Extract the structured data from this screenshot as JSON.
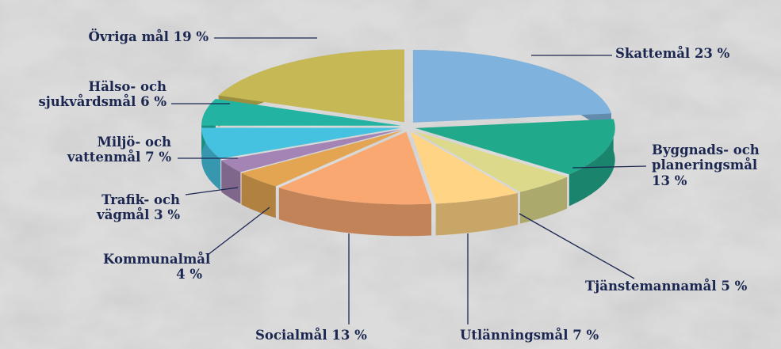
{
  "chart_data": {
    "type": "pie",
    "categories": [
      "Skattemål",
      "Byggnads- och planeringsmål",
      "Tjänstemannamål",
      "Utlänningsmål",
      "Socialmål",
      "Kommunalmål",
      "Trafik- och vägmål",
      "Miljö- och vattenmål",
      "Hälso- och sjukvårdsmål",
      "Övriga mål"
    ],
    "values": [
      23,
      13,
      5,
      7,
      13,
      4,
      3,
      7,
      6,
      19
    ],
    "value_labels": [
      "23 %",
      "13 %",
      "5 %",
      "7 %",
      "13 %",
      "4 %",
      "3 %",
      "7 %",
      "6 %",
      "19 %"
    ],
    "colors": [
      "#7fb2dd",
      "#21a98b",
      "#dcd98a",
      "#ffd585",
      "#f9a872",
      "#e3a552",
      "#a384b4",
      "#45c2e0",
      "#22b3a2",
      "#c6b955"
    ]
  }
}
